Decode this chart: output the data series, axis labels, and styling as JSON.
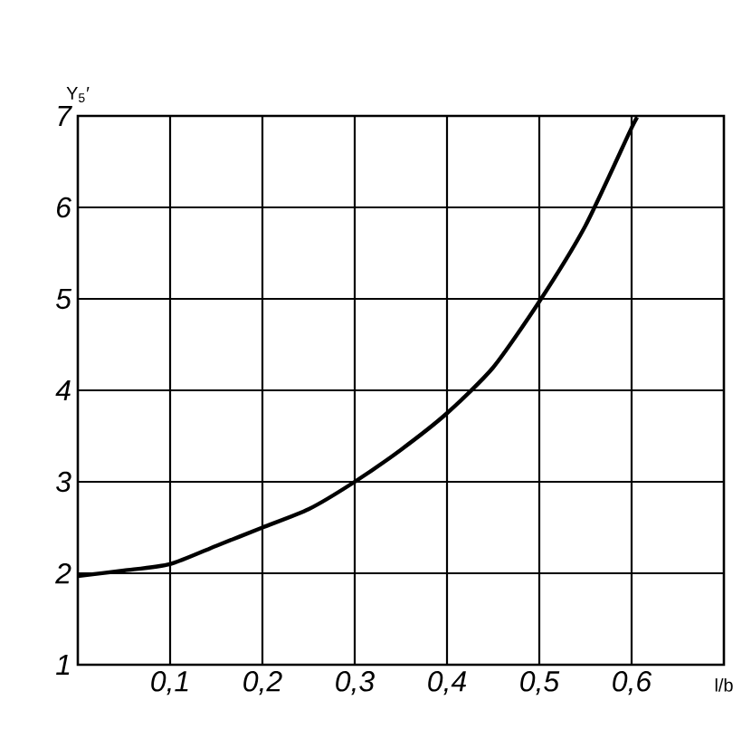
{
  "chart_data": {
    "type": "line",
    "xlabel": "l/b",
    "ylabel": "Y$_{5}$′",
    "x": [
      0,
      0.05,
      0.1,
      0.15,
      0.2,
      0.25,
      0.3,
      0.35,
      0.4,
      0.45,
      0.5,
      0.55,
      0.6,
      0.607
    ],
    "series": [
      {
        "color": "#000000",
        "values": [
          1.97,
          2.03,
          2.1,
          2.3,
          2.5,
          2.7,
          3.0,
          3.35,
          3.75,
          4.25,
          4.97,
          5.8,
          6.87,
          7.0
        ]
      }
    ],
    "xlim": [
      0,
      0.7
    ],
    "ylim": [
      1,
      7
    ],
    "xticks": [
      {
        "value": 0.1,
        "label": "0,1"
      },
      {
        "value": 0.2,
        "label": "0,2"
      },
      {
        "value": 0.3,
        "label": "0,3"
      },
      {
        "value": 0.4,
        "label": "0,4"
      },
      {
        "value": 0.5,
        "label": "0,5"
      },
      {
        "value": 0.6,
        "label": "0,6"
      }
    ],
    "yticks": [
      1,
      2,
      3,
      4,
      5,
      6,
      7
    ],
    "grid": true,
    "marker": "none",
    "line_style": "solid"
  }
}
